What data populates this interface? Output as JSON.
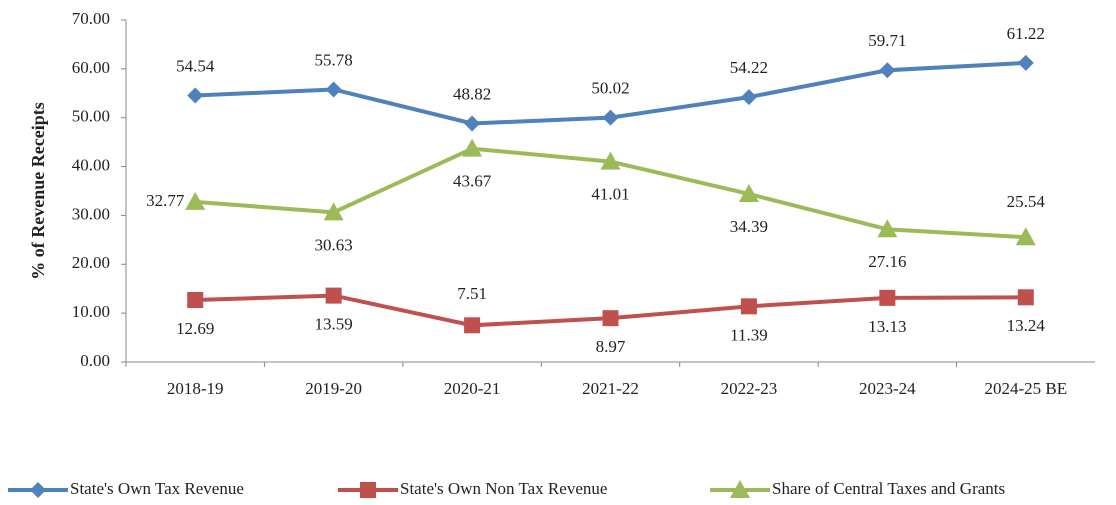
{
  "chart_data": {
    "type": "line",
    "y_label": "% of Revenue Receipts",
    "categories": [
      "2018-19",
      "2019-20",
      "2020-21",
      "2021-22",
      "2022-23",
      "2023-24",
      "2024-25 BE"
    ],
    "series": [
      {
        "name": "State's Own Tax Revenue",
        "color": "#4f81bd",
        "marker": "diamond",
        "values": [
          54.54,
          55.78,
          48.82,
          50.02,
          54.22,
          59.71,
          61.22
        ]
      },
      {
        "name": "State's Own Non Tax Revenue",
        "color": "#c0504d",
        "marker": "square",
        "values": [
          12.69,
          13.59,
          7.51,
          8.97,
          11.39,
          13.13,
          13.24
        ]
      },
      {
        "name": "Share of Central Taxes and Grants",
        "color": "#9bbb59",
        "marker": "triangle",
        "values": [
          32.77,
          30.63,
          43.67,
          41.01,
          34.39,
          27.16,
          25.54
        ]
      }
    ],
    "ylim": [
      0,
      70
    ],
    "yticks": [
      {
        "value": 0,
        "label": "0.00"
      },
      {
        "value": 10,
        "label": "10.00"
      },
      {
        "value": 20,
        "label": "20.00"
      },
      {
        "value": 30,
        "label": "30.00"
      },
      {
        "value": 40,
        "label": "40.00"
      },
      {
        "value": 50,
        "label": "50.00"
      },
      {
        "value": 60,
        "label": "60.00"
      },
      {
        "value": 70,
        "label": "70.00"
      }
    ],
    "legend": "bottom"
  }
}
